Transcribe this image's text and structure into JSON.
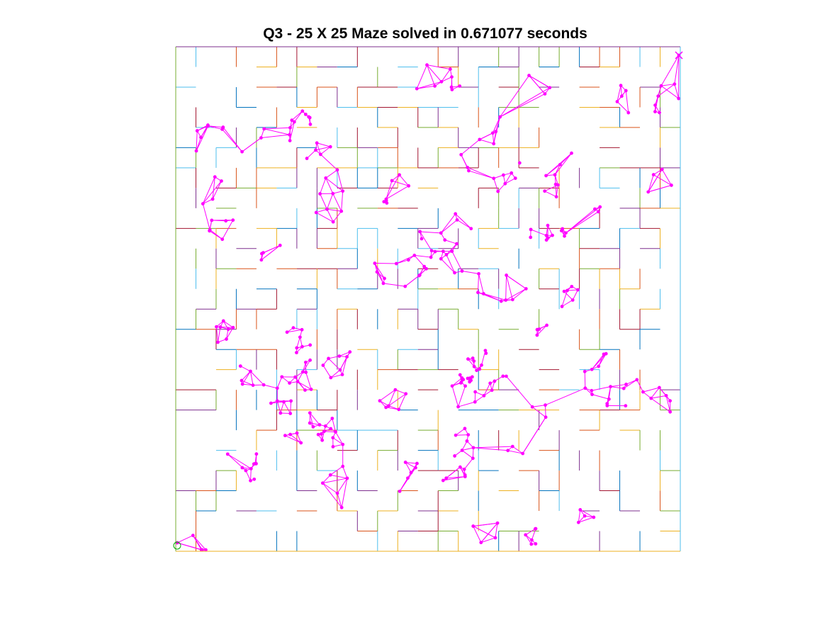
{
  "title": "Q3 - 25 X 25 Maze solved in 0.671077 seconds",
  "maze": {
    "rows": 25,
    "cols": 25,
    "grid_visible": true
  },
  "colors": {
    "roadmap": "#ff00ff",
    "start_marker": "#00aa00",
    "goal_marker": "#ff00ff",
    "wall_palette": [
      "#0072bd",
      "#d95319",
      "#edb120",
      "#7e2f8e",
      "#77ac30",
      "#4dbeee",
      "#a2142f"
    ]
  },
  "markers": {
    "start": "circle-icon",
    "goal": "cross-icon"
  }
}
